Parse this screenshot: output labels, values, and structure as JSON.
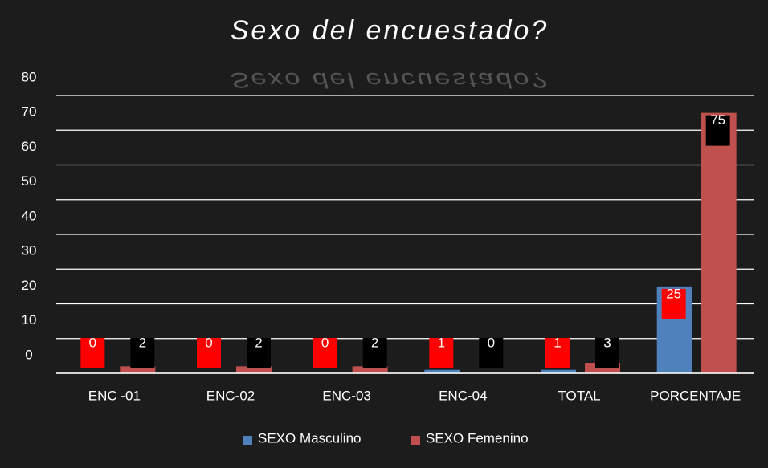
{
  "chart_data": {
    "type": "bar",
    "title": "Sexo del encuestado?",
    "categories": [
      "ENC -01",
      "ENC-02",
      "ENC-03",
      "ENC-04",
      "TOTAL",
      "PORCENTAJE"
    ],
    "series": [
      {
        "name": "SEXO Masculino",
        "color": "#4f81bd",
        "values": [
          0,
          0,
          0,
          1,
          1,
          25
        ]
      },
      {
        "name": "SEXO Femenino",
        "color": "#c0504d",
        "values": [
          2,
          2,
          2,
          0,
          3,
          75
        ]
      }
    ],
    "ylim": [
      0,
      80
    ],
    "yticks": [
      0,
      10,
      20,
      30,
      40,
      50,
      60,
      70,
      80
    ],
    "grid": true,
    "legend": "bottom"
  }
}
